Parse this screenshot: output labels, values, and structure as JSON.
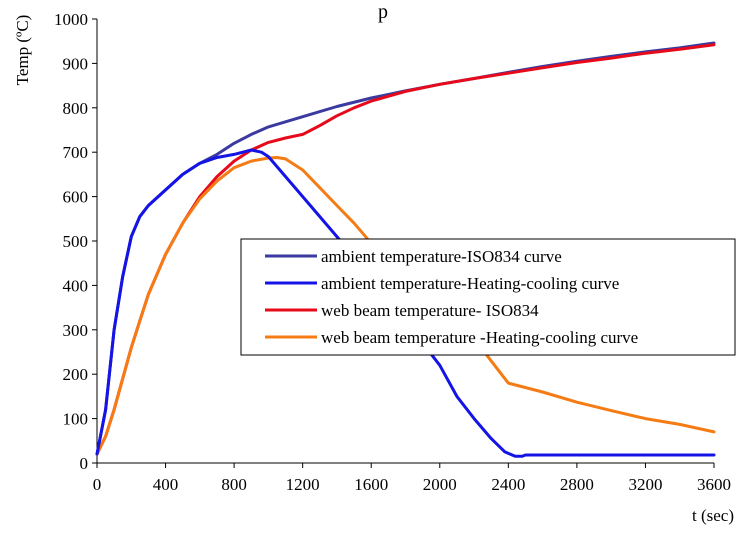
{
  "chart_data": {
    "type": "line",
    "title_fragment": "p",
    "xlabel": "t (sec)",
    "ylabel": "Temp (ºC)",
    "xlim": [
      0,
      3600
    ],
    "ylim": [
      0,
      1000
    ],
    "x_ticks": [
      "0",
      "400",
      "800",
      "1200",
      "1600",
      "2000",
      "2400",
      "2800",
      "3200",
      "3600"
    ],
    "y_ticks": [
      "0",
      "100",
      "200",
      "300",
      "400",
      "500",
      "600",
      "700",
      "800",
      "900",
      "1000"
    ],
    "grid": false,
    "legend_position": "center-right",
    "series": [
      {
        "name": "ambient temperature-ISO834 curve",
        "color": "#3a3aa0",
        "points": [
          [
            0,
            20
          ],
          [
            50,
            120
          ],
          [
            100,
            300
          ],
          [
            150,
            420
          ],
          [
            200,
            510
          ],
          [
            250,
            555
          ],
          [
            300,
            580
          ],
          [
            400,
            615
          ],
          [
            500,
            650
          ],
          [
            600,
            675
          ],
          [
            700,
            695
          ],
          [
            800,
            720
          ],
          [
            900,
            740
          ],
          [
            1000,
            757
          ],
          [
            1200,
            780
          ],
          [
            1400,
            803
          ],
          [
            1600,
            822
          ],
          [
            1800,
            838
          ],
          [
            2000,
            853
          ],
          [
            2200,
            866
          ],
          [
            2400,
            880
          ],
          [
            2600,
            893
          ],
          [
            2800,
            905
          ],
          [
            3000,
            916
          ],
          [
            3200,
            926
          ],
          [
            3400,
            935
          ],
          [
            3600,
            946
          ]
        ]
      },
      {
        "name": "ambient temperature-Heating-cooling curve",
        "color": "#1414e6",
        "points": [
          [
            0,
            20
          ],
          [
            50,
            120
          ],
          [
            100,
            300
          ],
          [
            150,
            420
          ],
          [
            200,
            510
          ],
          [
            250,
            555
          ],
          [
            300,
            580
          ],
          [
            400,
            615
          ],
          [
            500,
            650
          ],
          [
            600,
            675
          ],
          [
            700,
            688
          ],
          [
            800,
            695
          ],
          [
            900,
            705
          ],
          [
            960,
            700
          ],
          [
            1000,
            690
          ],
          [
            1200,
            600
          ],
          [
            1400,
            510
          ],
          [
            1600,
            420
          ],
          [
            1800,
            320
          ],
          [
            2000,
            220
          ],
          [
            2100,
            150
          ],
          [
            2200,
            100
          ],
          [
            2300,
            55
          ],
          [
            2380,
            25
          ],
          [
            2440,
            15
          ],
          [
            2480,
            15
          ],
          [
            2500,
            18
          ],
          [
            2800,
            18
          ],
          [
            3200,
            18
          ],
          [
            3600,
            18
          ]
        ]
      },
      {
        "name": "web beam temperature- ISO834",
        "color": "#e60a1a",
        "points": [
          [
            0,
            20
          ],
          [
            50,
            60
          ],
          [
            100,
            120
          ],
          [
            150,
            190
          ],
          [
            200,
            260
          ],
          [
            250,
            320
          ],
          [
            300,
            380
          ],
          [
            400,
            470
          ],
          [
            500,
            540
          ],
          [
            600,
            600
          ],
          [
            700,
            645
          ],
          [
            800,
            680
          ],
          [
            900,
            705
          ],
          [
            1000,
            722
          ],
          [
            1100,
            732
          ],
          [
            1200,
            740
          ],
          [
            1300,
            760
          ],
          [
            1400,
            782
          ],
          [
            1500,
            800
          ],
          [
            1600,
            815
          ],
          [
            1800,
            837
          ],
          [
            2000,
            853
          ],
          [
            2200,
            866
          ],
          [
            2400,
            878
          ],
          [
            2600,
            890
          ],
          [
            2800,
            902
          ],
          [
            3000,
            912
          ],
          [
            3200,
            923
          ],
          [
            3400,
            932
          ],
          [
            3600,
            942
          ]
        ]
      },
      {
        "name": "web beam temperature -Heating-cooling curve",
        "color": "#f57c14",
        "points": [
          [
            0,
            20
          ],
          [
            50,
            60
          ],
          [
            100,
            120
          ],
          [
            150,
            190
          ],
          [
            200,
            260
          ],
          [
            250,
            320
          ],
          [
            300,
            380
          ],
          [
            400,
            470
          ],
          [
            500,
            540
          ],
          [
            600,
            595
          ],
          [
            700,
            635
          ],
          [
            800,
            665
          ],
          [
            900,
            680
          ],
          [
            1000,
            687
          ],
          [
            1050,
            688
          ],
          [
            1100,
            685
          ],
          [
            1200,
            660
          ],
          [
            1300,
            620
          ],
          [
            1400,
            580
          ],
          [
            1500,
            540
          ],
          [
            1600,
            495
          ],
          [
            1800,
            420
          ],
          [
            2000,
            350
          ],
          [
            2200,
            280
          ],
          [
            2300,
            230
          ],
          [
            2400,
            180
          ],
          [
            2600,
            160
          ],
          [
            2800,
            137
          ],
          [
            3000,
            118
          ],
          [
            3200,
            100
          ],
          [
            3400,
            87
          ],
          [
            3600,
            70
          ]
        ]
      }
    ]
  }
}
